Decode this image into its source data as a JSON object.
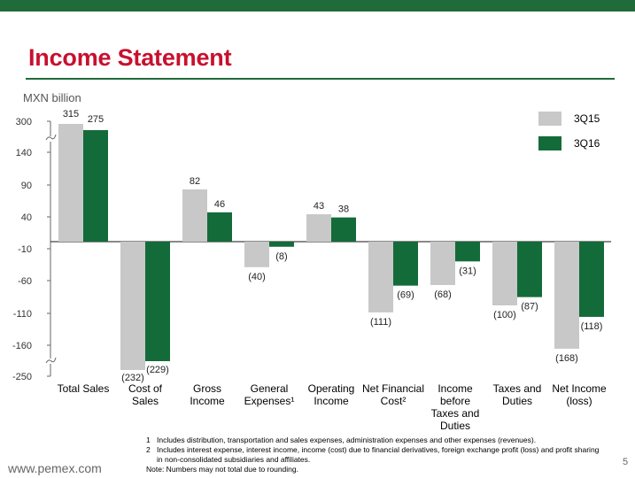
{
  "header": {
    "title": "Income Statement"
  },
  "chart_data": {
    "type": "bar",
    "ylabel": "MXN billion",
    "y_ticks": [
      "300",
      "140",
      "90",
      "40",
      "-10",
      "-60",
      "-110",
      "-160",
      "-250"
    ],
    "axis_breaks": "upper and lower",
    "legend_position": "top-right",
    "categories": [
      [
        "Total Sales"
      ],
      [
        "Cost of",
        "Sales"
      ],
      [
        "Gross",
        "Income"
      ],
      [
        "General",
        "Expenses¹"
      ],
      [
        "Operating",
        "Income"
      ],
      [
        "Net Financial",
        "Cost²"
      ],
      [
        "Income",
        "before",
        "Taxes and",
        "Duties"
      ],
      [
        "Taxes and",
        "Duties"
      ],
      [
        "Net Income",
        "(loss)"
      ]
    ],
    "series": [
      {
        "name": "3Q15",
        "color": "#c8c8c8",
        "values": [
          315,
          -232,
          82,
          -40,
          43,
          -111,
          -68,
          -100,
          -168
        ],
        "labels": [
          "315",
          "(232)",
          "82",
          "(40)",
          "43",
          "(111)",
          "(68)",
          "(100)",
          "(168)"
        ]
      },
      {
        "name": "3Q16",
        "color": "#146b3a",
        "values": [
          275,
          -229,
          46,
          -8,
          38,
          -69,
          -31,
          -87,
          -118
        ],
        "labels": [
          "275",
          "(229)",
          "46",
          "(8)",
          "38",
          "(69)",
          "(31)",
          "(87)",
          "(118)"
        ]
      }
    ]
  },
  "footnotes": [
    {
      "num": "1",
      "text": "Includes distribution, transportation and sales expenses, administration expenses and other expenses (revenues)."
    },
    {
      "num": "2",
      "text": "Includes interest expense, interest income, income (cost) due to financial derivatives, foreign exchange profit (loss) and profit sharing in non-consolidated subsidiaries and affiliates."
    }
  ],
  "note": "Note: Numbers may not total due to rounding.",
  "footer": {
    "website": "www.pemex.com",
    "page": "5"
  }
}
